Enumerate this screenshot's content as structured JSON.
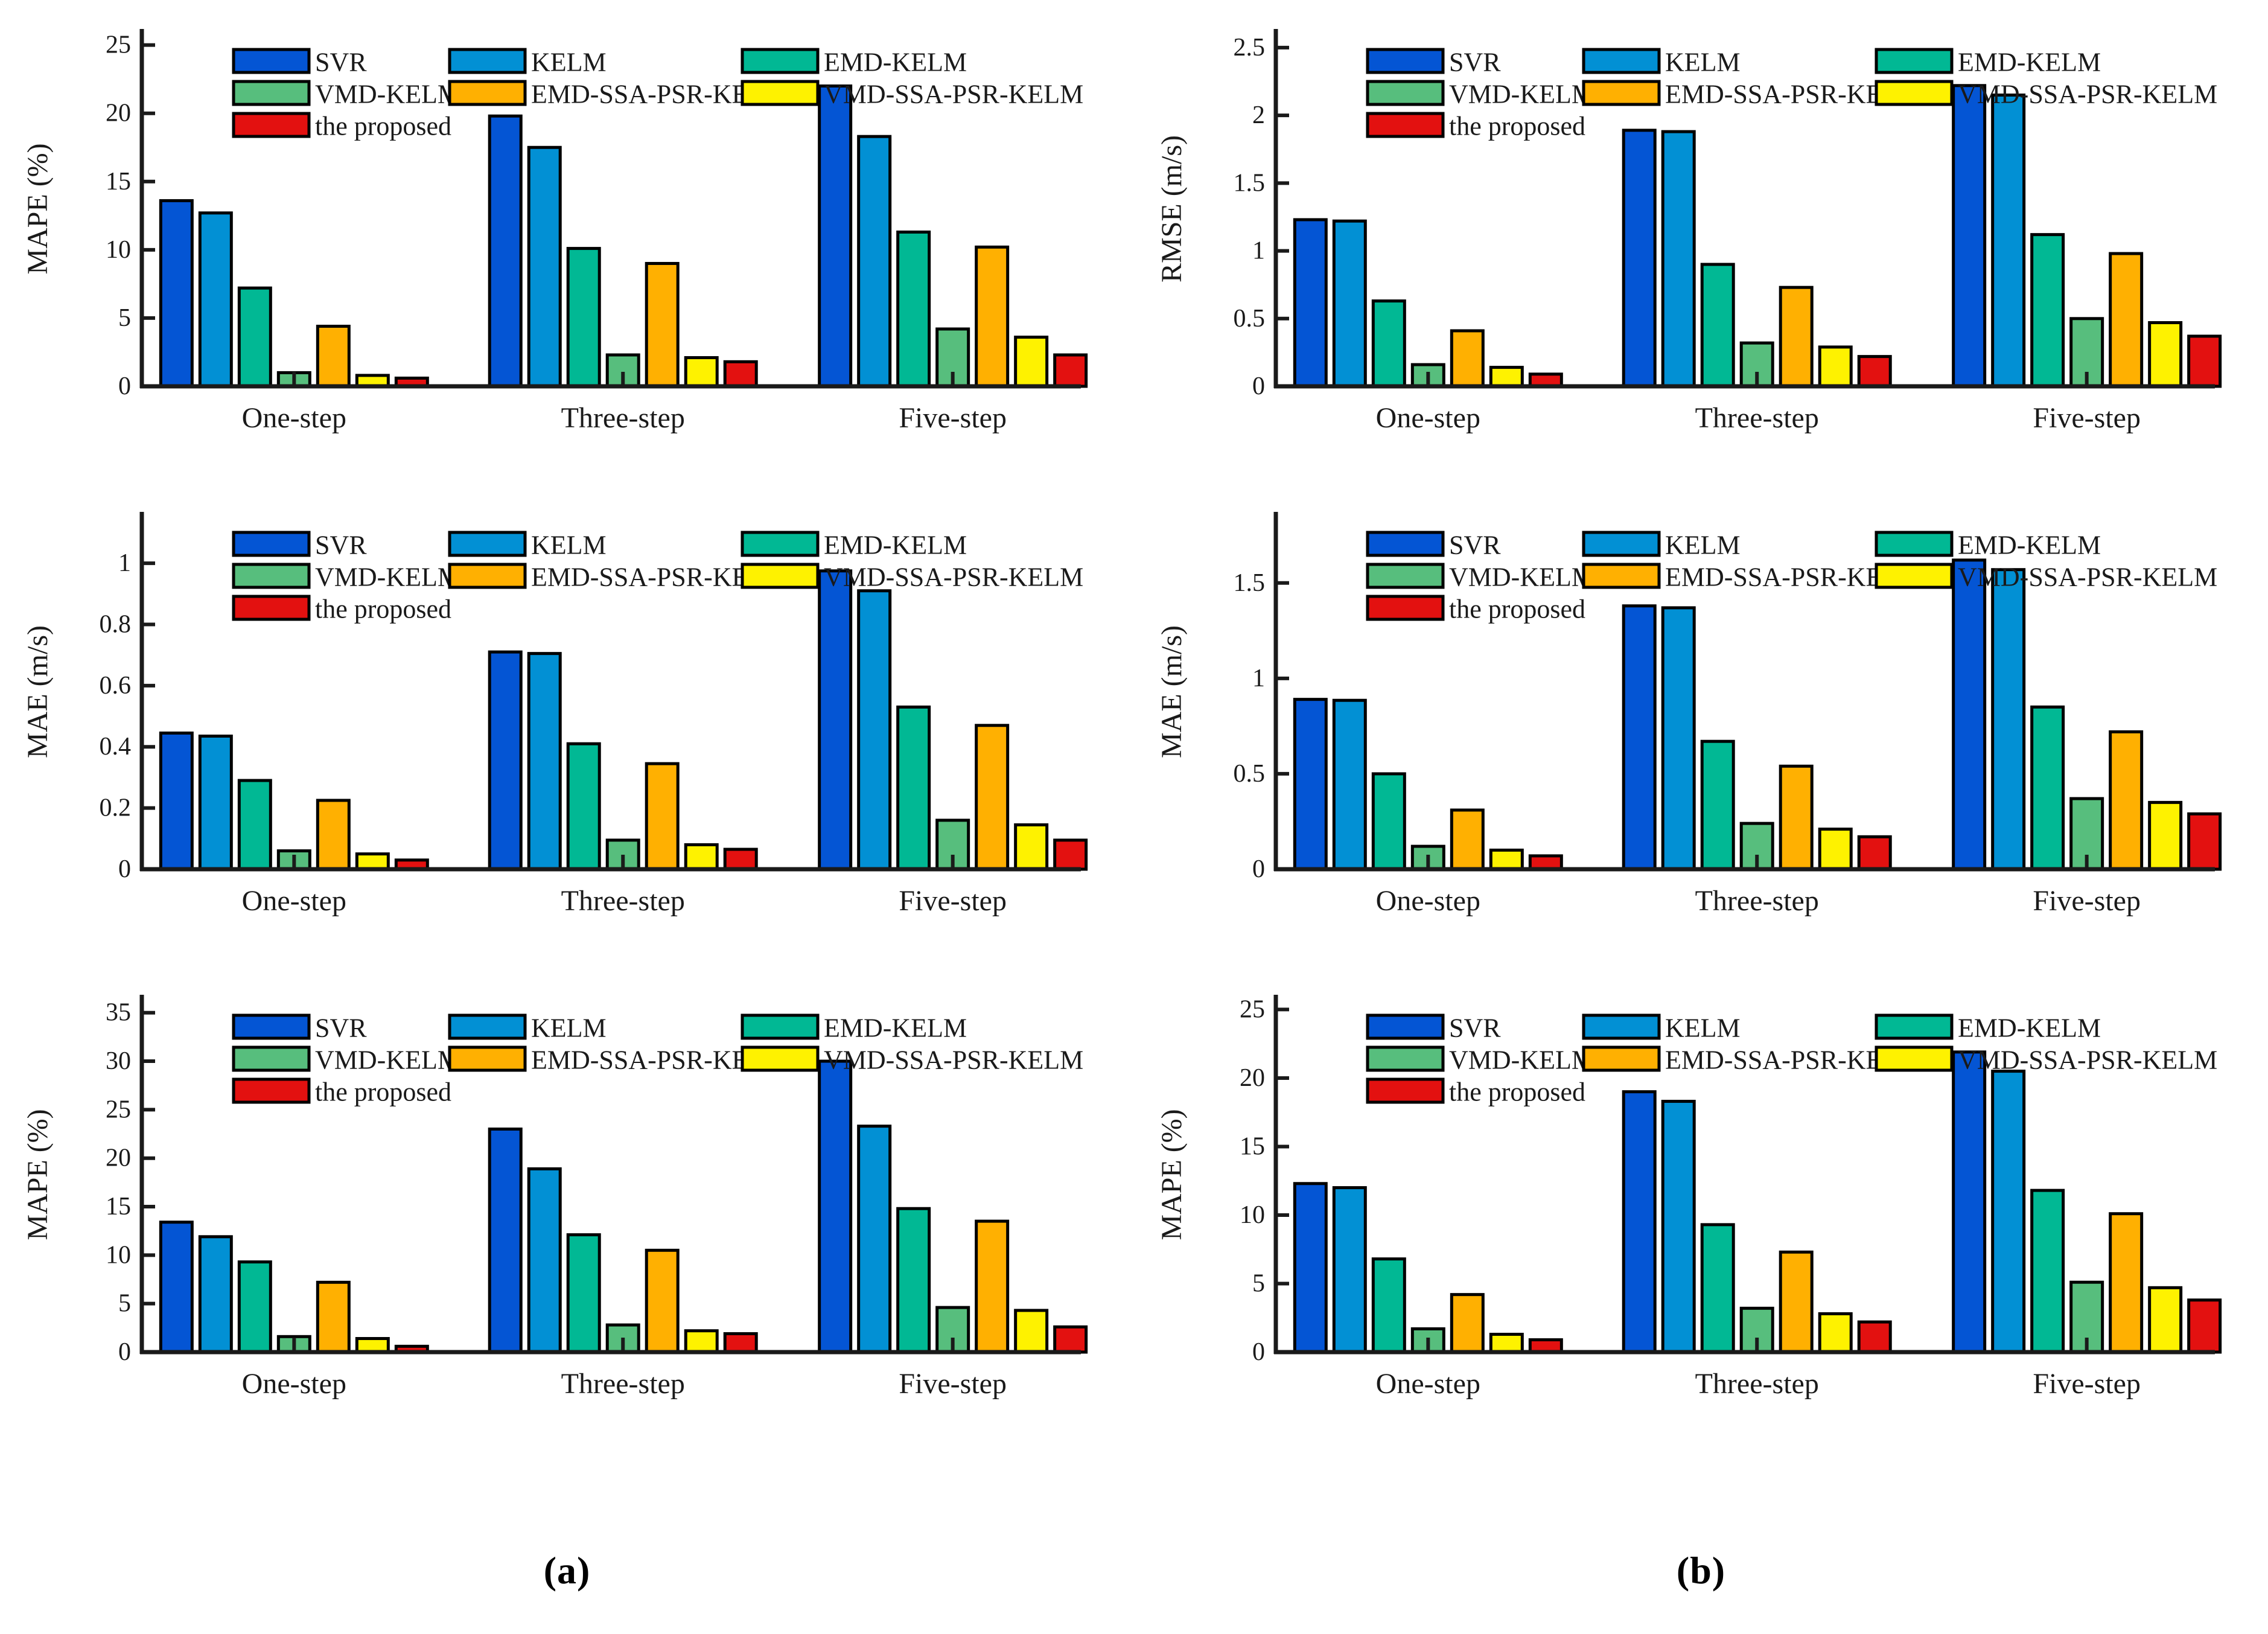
{
  "figure": {
    "caption_a": "(a)",
    "caption_b": "(b)",
    "background": "#ffffff",
    "axis_color": "#1a1a1a",
    "bar_outline_color": "#000000"
  },
  "legend": {
    "row1": [
      "SVR",
      "KELM",
      "EMD-KELM"
    ],
    "row2": [
      "VMD-KELM",
      "EMD-SSA-PSR-KELM",
      "VMD-SSA-PSR-KELM"
    ],
    "row3": [
      "the proposed"
    ]
  },
  "chart_data": [
    {
      "id": "panel-a-row1",
      "panel": "a",
      "type": "bar",
      "title": "",
      "xlabel": "",
      "ylabel": "MAPE (%)",
      "ylim": [
        0,
        26
      ],
      "yticks": [
        0,
        5,
        10,
        15,
        20,
        25
      ],
      "grid": false,
      "legend_position": "inside-top",
      "categories": [
        "One-step",
        "Three-step",
        "Five-step"
      ],
      "series": [
        {
          "name": "SVR",
          "color": "#0455D4",
          "values": [
            13.6,
            19.8,
            22.0
          ]
        },
        {
          "name": "KELM",
          "color": "#0290D4",
          "values": [
            12.7,
            17.5,
            18.3
          ]
        },
        {
          "name": "EMD-KELM",
          "color": "#01B894",
          "values": [
            7.2,
            10.1,
            11.3
          ]
        },
        {
          "name": "VMD-KELM",
          "color": "#57BE7D",
          "values": [
            1.0,
            2.3,
            4.2
          ]
        },
        {
          "name": "EMD-SSA-PSR-KELM",
          "color": "#FFB001",
          "values": [
            4.4,
            9.0,
            10.2
          ]
        },
        {
          "name": "VMD-SSA-PSR-KELM",
          "color": "#FEF200",
          "values": [
            0.8,
            2.1,
            3.6
          ]
        },
        {
          "name": "the proposed",
          "color": "#E31110",
          "values": [
            0.6,
            1.8,
            2.3
          ]
        }
      ]
    },
    {
      "id": "panel-b-row1",
      "panel": "b",
      "type": "bar",
      "title": "",
      "xlabel": "",
      "ylabel": "RMSE (m/s)",
      "ylim": [
        0,
        2.62
      ],
      "yticks": [
        0,
        0.5,
        1,
        1.5,
        2,
        2.5
      ],
      "grid": false,
      "legend_position": "inside-top",
      "categories": [
        "One-step",
        "Three-step",
        "Five-step"
      ],
      "series": [
        {
          "name": "SVR",
          "color": "#0455D4",
          "values": [
            1.23,
            1.89,
            2.22
          ]
        },
        {
          "name": "KELM",
          "color": "#0290D4",
          "values": [
            1.22,
            1.88,
            2.15
          ]
        },
        {
          "name": "EMD-KELM",
          "color": "#01B894",
          "values": [
            0.63,
            0.9,
            1.12
          ]
        },
        {
          "name": "VMD-KELM",
          "color": "#57BE7D",
          "values": [
            0.16,
            0.32,
            0.5
          ]
        },
        {
          "name": "EMD-SSA-PSR-KELM",
          "color": "#FFB001",
          "values": [
            0.41,
            0.73,
            0.98
          ]
        },
        {
          "name": "VMD-SSA-PSR-KELM",
          "color": "#FEF200",
          "values": [
            0.14,
            0.29,
            0.47
          ]
        },
        {
          "name": "the proposed",
          "color": "#E31110",
          "values": [
            0.09,
            0.22,
            0.37
          ]
        }
      ]
    },
    {
      "id": "panel-a-row2",
      "panel": "a",
      "type": "bar",
      "title": "",
      "xlabel": "",
      "ylabel": "MAE (m/s)",
      "ylim": [
        0,
        1.16
      ],
      "yticks": [
        0,
        0.2,
        0.4,
        0.6,
        0.8,
        1
      ],
      "grid": false,
      "legend_position": "inside-top",
      "categories": [
        "One-step",
        "Three-step",
        "Five-step"
      ],
      "series": [
        {
          "name": "SVR",
          "color": "#0455D4",
          "values": [
            0.445,
            0.71,
            0.975
          ]
        },
        {
          "name": "KELM",
          "color": "#0290D4",
          "values": [
            0.435,
            0.705,
            0.91
          ]
        },
        {
          "name": "EMD-KELM",
          "color": "#01B894",
          "values": [
            0.29,
            0.41,
            0.53
          ]
        },
        {
          "name": "VMD-KELM",
          "color": "#57BE7D",
          "values": [
            0.06,
            0.095,
            0.16
          ]
        },
        {
          "name": "EMD-SSA-PSR-KELM",
          "color": "#FFB001",
          "values": [
            0.225,
            0.345,
            0.47
          ]
        },
        {
          "name": "VMD-SSA-PSR-KELM",
          "color": "#FEF200",
          "values": [
            0.05,
            0.08,
            0.145
          ]
        },
        {
          "name": "the proposed",
          "color": "#E31110",
          "values": [
            0.03,
            0.065,
            0.095
          ]
        }
      ]
    },
    {
      "id": "panel-b-row2",
      "panel": "b",
      "type": "bar",
      "title": "",
      "xlabel": "",
      "ylabel": "MAE (m/s)",
      "ylim": [
        0,
        1.86
      ],
      "yticks": [
        0,
        0.5,
        1,
        1.5
      ],
      "grid": false,
      "legend_position": "inside-top",
      "categories": [
        "One-step",
        "Three-step",
        "Five-step"
      ],
      "series": [
        {
          "name": "SVR",
          "color": "#0455D4",
          "values": [
            0.89,
            1.38,
            1.62
          ]
        },
        {
          "name": "KELM",
          "color": "#0290D4",
          "values": [
            0.885,
            1.37,
            1.57
          ]
        },
        {
          "name": "EMD-KELM",
          "color": "#01B894",
          "values": [
            0.5,
            0.67,
            0.85
          ]
        },
        {
          "name": "VMD-KELM",
          "color": "#57BE7D",
          "values": [
            0.12,
            0.24,
            0.37
          ]
        },
        {
          "name": "EMD-SSA-PSR-KELM",
          "color": "#FFB001",
          "values": [
            0.31,
            0.54,
            0.72
          ]
        },
        {
          "name": "VMD-SSA-PSR-KELM",
          "color": "#FEF200",
          "values": [
            0.1,
            0.21,
            0.35
          ]
        },
        {
          "name": "the proposed",
          "color": "#E31110",
          "values": [
            0.07,
            0.17,
            0.29
          ]
        }
      ]
    },
    {
      "id": "panel-a-row3",
      "panel": "a",
      "type": "bar",
      "title": "",
      "xlabel": "",
      "ylabel": "MAPE (%)",
      "ylim": [
        0,
        36.6
      ],
      "yticks": [
        0,
        5,
        10,
        15,
        20,
        25,
        30,
        35
      ],
      "grid": false,
      "legend_position": "inside-top",
      "categories": [
        "One-step",
        "Three-step",
        "Five-step"
      ],
      "series": [
        {
          "name": "SVR",
          "color": "#0455D4",
          "values": [
            13.4,
            23.0,
            30.0
          ]
        },
        {
          "name": "KELM",
          "color": "#0290D4",
          "values": [
            11.9,
            18.9,
            23.3
          ]
        },
        {
          "name": "EMD-KELM",
          "color": "#01B894",
          "values": [
            9.3,
            12.1,
            14.8
          ]
        },
        {
          "name": "VMD-KELM",
          "color": "#57BE7D",
          "values": [
            1.6,
            2.8,
            4.6
          ]
        },
        {
          "name": "EMD-SSA-PSR-KELM",
          "color": "#FFB001",
          "values": [
            7.2,
            10.5,
            13.5
          ]
        },
        {
          "name": "VMD-SSA-PSR-KELM",
          "color": "#FEF200",
          "values": [
            1.4,
            2.2,
            4.3
          ]
        },
        {
          "name": "the proposed",
          "color": "#E31110",
          "values": [
            0.6,
            1.9,
            2.6
          ]
        }
      ]
    },
    {
      "id": "panel-b-row3",
      "panel": "b",
      "type": "bar",
      "title": "",
      "xlabel": "",
      "ylabel": "MAPE (%)",
      "ylim": [
        0,
        25.9
      ],
      "yticks": [
        0,
        5,
        10,
        15,
        20,
        25
      ],
      "grid": false,
      "legend_position": "inside-top",
      "categories": [
        "One-step",
        "Three-step",
        "Five-step"
      ],
      "series": [
        {
          "name": "SVR",
          "color": "#0455D4",
          "values": [
            12.3,
            19.0,
            21.9
          ]
        },
        {
          "name": "KELM",
          "color": "#0290D4",
          "values": [
            12.0,
            18.3,
            20.5
          ]
        },
        {
          "name": "EMD-KELM",
          "color": "#01B894",
          "values": [
            6.8,
            9.3,
            11.8
          ]
        },
        {
          "name": "VMD-KELM",
          "color": "#57BE7D",
          "values": [
            1.7,
            3.2,
            5.1
          ]
        },
        {
          "name": "EMD-SSA-PSR-KELM",
          "color": "#FFB001",
          "values": [
            4.2,
            7.3,
            10.1
          ]
        },
        {
          "name": "VMD-SSA-PSR-KELM",
          "color": "#FEF200",
          "values": [
            1.3,
            2.8,
            4.7
          ]
        },
        {
          "name": "the proposed",
          "color": "#E31110",
          "values": [
            0.9,
            2.2,
            3.8
          ]
        }
      ]
    }
  ]
}
